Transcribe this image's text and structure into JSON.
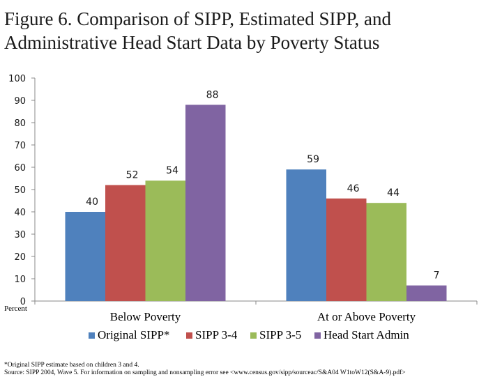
{
  "title": "Figure 6. Comparison of SIPP, Estimated SIPP, and Administrative Head Start Data by Poverty Status",
  "footnotes": {
    "note": "*Original SIPP estimate based on children 3 and 4.",
    "source": "Source: SIPP 2004, Wave 5. For information on sampling and nonsampling error  see <www.census.gov/sipp/sourceac/S&A04 W1toW12(S&A-9).pdf>"
  },
  "chart_data": {
    "type": "bar",
    "title": "Figure 6. Comparison of SIPP, Estimated SIPP, and Administrative Head Start Data by Poverty Status",
    "xlabel": "",
    "ylabel": "Percent",
    "ylim": [
      0,
      100
    ],
    "yticks": [
      "0",
      "10",
      "20",
      "30",
      "40",
      "50",
      "60",
      "70",
      "80",
      "90",
      "100"
    ],
    "categories": [
      "Below Poverty",
      "At or Above Poverty"
    ],
    "series": [
      {
        "name": "Original SIPP*",
        "color": "#4f81bd",
        "values": [
          40,
          59
        ]
      },
      {
        "name": "SIPP 3-4",
        "color": "#c0504d",
        "values": [
          52,
          46
        ]
      },
      {
        "name": "SIPP 3-5",
        "color": "#9bbb59",
        "values": [
          54,
          44
        ]
      },
      {
        "name": "Head Start Admin",
        "color": "#8064a2",
        "values": [
          88,
          7
        ]
      }
    ],
    "legend_position": "bottom",
    "grid": false
  }
}
